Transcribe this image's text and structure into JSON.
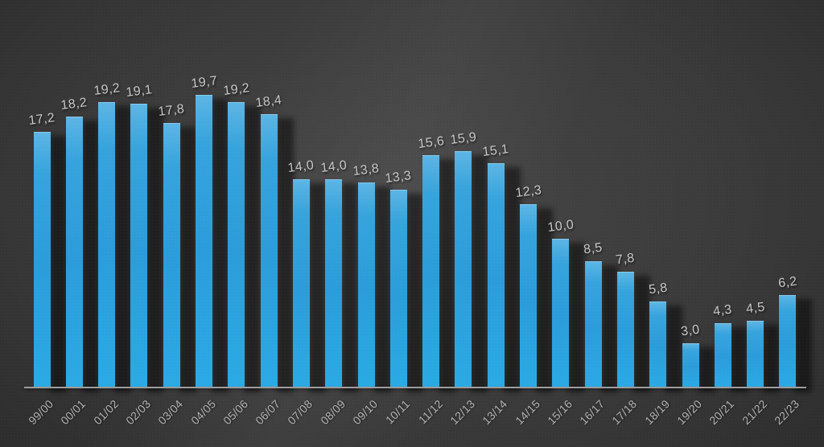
{
  "chart_data": {
    "type": "bar",
    "title": "",
    "xlabel": "",
    "ylabel": "",
    "categories": [
      "99/00",
      "00/01",
      "01/02",
      "02/03",
      "03/04",
      "04/05",
      "05/06",
      "06/07",
      "07/08",
      "08/09",
      "09/10",
      "10/11",
      "11/12",
      "12/13",
      "13/14",
      "14/15",
      "15/16",
      "16/17",
      "17/18",
      "18/19",
      "19/20",
      "20/21",
      "21/22",
      "22/23"
    ],
    "values": [
      17.2,
      18.2,
      19.2,
      19.1,
      17.8,
      19.7,
      19.2,
      18.4,
      14.0,
      14.0,
      13.8,
      13.3,
      15.6,
      15.9,
      15.1,
      12.3,
      10.0,
      8.5,
      7.8,
      5.8,
      3.0,
      4.3,
      4.5,
      6.2
    ],
    "value_labels": [
      "17,2",
      "18,2",
      "19,2",
      "19,1",
      "17,8",
      "19,7",
      "19,2",
      "18,4",
      "14,0",
      "14,0",
      "13,8",
      "13,3",
      "15,6",
      "15,9",
      "15,1",
      "12,3",
      "10,0",
      "8,5",
      "7,8",
      "5,8",
      "3,0",
      "4,3",
      "4,5",
      "6,2"
    ],
    "decimal_separator": ",",
    "ylim": [
      0,
      20
    ],
    "grid": false,
    "legend": false,
    "y_axis_visible": false,
    "x_axis_line": true,
    "data_labels_position": "above-bar",
    "tick_label_rotation_deg": -45
  },
  "style": {
    "bar_color": "#2AA5DF",
    "bar_gradient_top": "#5CB5E4",
    "bar_gradient_bottom": "#2AAAE4",
    "bar_shadow_color": "#0A0A0A",
    "background_center": "#474747",
    "background_edge": "#222222",
    "axis_line_color": "#9D9D9D",
    "value_label_color": "#C7C7C7",
    "tick_label_color": "#B2B2B2"
  }
}
